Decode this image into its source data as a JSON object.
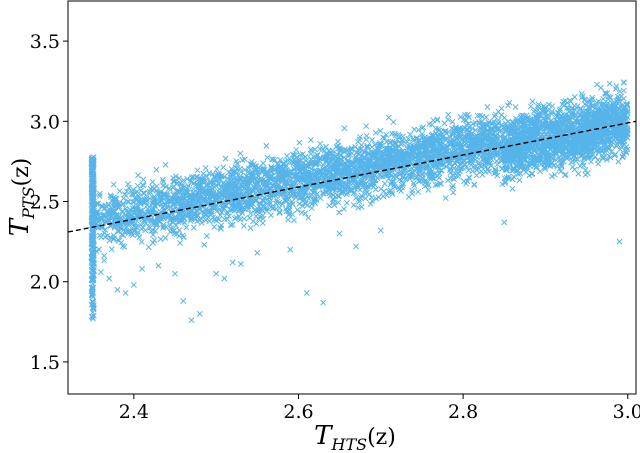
{
  "chart_data": {
    "type": "scatter",
    "title": "",
    "xlabel": {
      "main": "T",
      "sub": "HTS",
      "arg": "(z)"
    },
    "ylabel": {
      "main": "T",
      "sub": "PTS",
      "arg": "(z)"
    },
    "xlim": [
      2.32,
      3.01
    ],
    "ylim": [
      1.3,
      3.75
    ],
    "xticks": [
      "2.4",
      "2.6",
      "2.8",
      "3.0"
    ],
    "yticks": [
      "1.5",
      "2.0",
      "2.5",
      "3.0",
      "3.5"
    ],
    "grid": false,
    "legend": "none",
    "marker": "x",
    "colors": {
      "points": "#56b4e9",
      "fit_line": "#000000"
    },
    "fit_line": {
      "style": "dashed",
      "x": [
        2.32,
        3.01
      ],
      "y": [
        2.31,
        3.0
      ]
    },
    "series": [
      {
        "description": "dense cloud of ~5000 points around the fit line, spread ~±0.18; vertical column of points at x=2.35 spanning 1.71 to 2.78",
        "x_range": [
          2.35,
          3.0
        ],
        "column_x": 2.35,
        "column_y_range": [
          1.71,
          2.78
        ],
        "spread": 0.18,
        "points": [
          [
            2.36,
            2.06
          ],
          [
            2.37,
            2.02
          ],
          [
            2.38,
            1.95
          ],
          [
            2.39,
            1.93
          ],
          [
            2.4,
            1.98
          ],
          [
            2.41,
            2.08
          ],
          [
            2.43,
            2.1
          ],
          [
            2.45,
            2.05
          ],
          [
            2.46,
            1.88
          ],
          [
            2.47,
            1.76
          ],
          [
            2.48,
            1.8
          ],
          [
            2.5,
            2.05
          ],
          [
            2.51,
            2.02
          ],
          [
            2.52,
            2.12
          ],
          [
            2.53,
            2.11
          ],
          [
            2.55,
            2.18
          ],
          [
            2.59,
            2.2
          ],
          [
            2.61,
            1.93
          ],
          [
            2.63,
            1.87
          ],
          [
            2.65,
            2.3
          ],
          [
            2.67,
            2.22
          ],
          [
            2.7,
            2.32
          ],
          [
            2.85,
            2.37
          ],
          [
            2.86,
            2.58
          ],
          [
            2.99,
            2.25
          ]
        ]
      }
    ]
  }
}
